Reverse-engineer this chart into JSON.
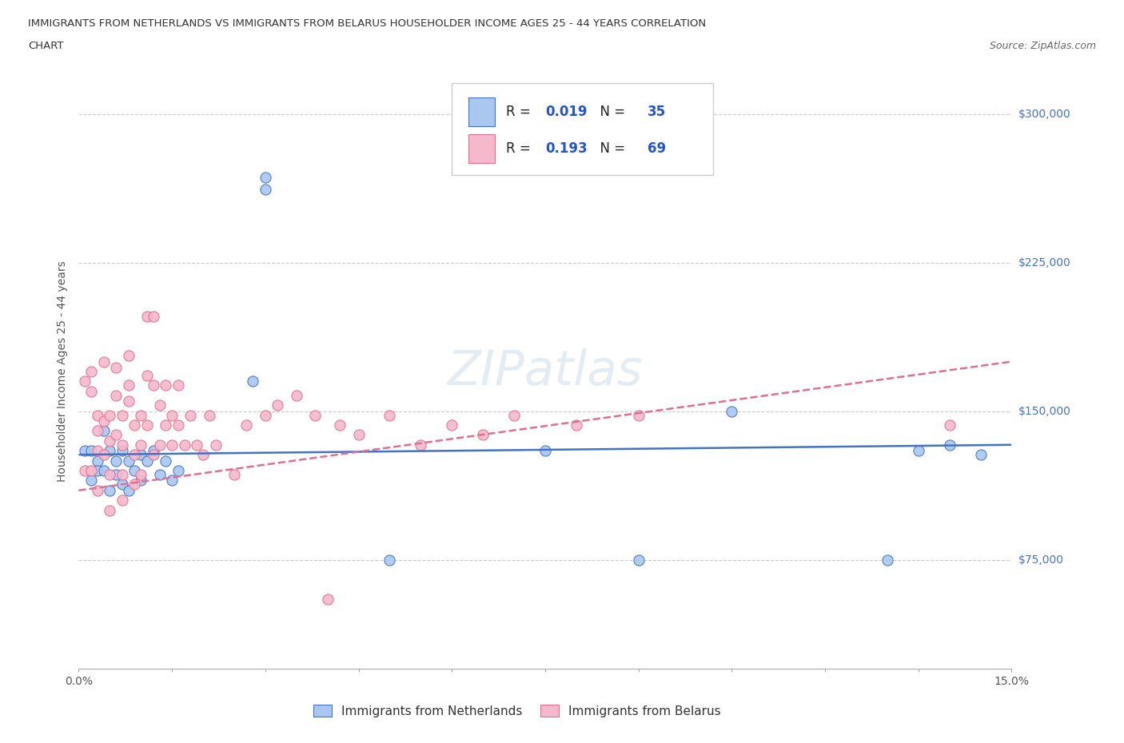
{
  "title_line1": "IMMIGRANTS FROM NETHERLANDS VS IMMIGRANTS FROM BELARUS HOUSEHOLDER INCOME AGES 25 - 44 YEARS CORRELATION",
  "title_line2": "CHART",
  "source_text": "Source: ZipAtlas.com",
  "ylabel": "Householder Income Ages 25 - 44 years",
  "xlim": [
    0.0,
    0.15
  ],
  "ylim": [
    20000,
    320000
  ],
  "xticks": [
    0.0,
    0.015,
    0.03,
    0.045,
    0.06,
    0.075,
    0.09,
    0.105,
    0.12,
    0.135,
    0.15
  ],
  "xticklabels": [
    "0.0%",
    "",
    "",
    "",
    "",
    "",
    "",
    "",
    "",
    "",
    "15.0%"
  ],
  "ytick_positions": [
    75000,
    150000,
    225000,
    300000
  ],
  "ytick_labels": [
    "$75,000",
    "$150,000",
    "$225,000",
    "$300,000"
  ],
  "color_netherlands": "#a8c8f0",
  "color_belarus": "#f5b8cc",
  "line_color_netherlands": "#4472c4",
  "line_color_belarus": "#e07090",
  "R_netherlands": 0.019,
  "N_netherlands": 35,
  "R_belarus": 0.193,
  "N_belarus": 69,
  "watermark": "ZIPatlas",
  "background_color": "#ffffff",
  "grid_color": "#cccccc",
  "nl_line_y0": 128000,
  "nl_line_y1": 133000,
  "by_line_y0": 110000,
  "by_line_y1": 175000,
  "netherlands_x": [
    0.001,
    0.002,
    0.002,
    0.003,
    0.003,
    0.004,
    0.004,
    0.005,
    0.005,
    0.006,
    0.006,
    0.007,
    0.007,
    0.008,
    0.008,
    0.009,
    0.01,
    0.01,
    0.011,
    0.012,
    0.013,
    0.014,
    0.015,
    0.016,
    0.028,
    0.03,
    0.03,
    0.05,
    0.075,
    0.09,
    0.105,
    0.13,
    0.135,
    0.14,
    0.145
  ],
  "netherlands_y": [
    130000,
    130000,
    115000,
    125000,
    120000,
    140000,
    120000,
    130000,
    110000,
    125000,
    118000,
    130000,
    113000,
    125000,
    110000,
    120000,
    128000,
    115000,
    125000,
    130000,
    118000,
    125000,
    115000,
    120000,
    165000,
    262000,
    268000,
    75000,
    130000,
    75000,
    150000,
    75000,
    130000,
    133000,
    128000
  ],
  "belarus_x": [
    0.001,
    0.001,
    0.002,
    0.002,
    0.002,
    0.003,
    0.003,
    0.003,
    0.003,
    0.004,
    0.004,
    0.004,
    0.005,
    0.005,
    0.005,
    0.005,
    0.006,
    0.006,
    0.006,
    0.007,
    0.007,
    0.007,
    0.007,
    0.008,
    0.008,
    0.008,
    0.009,
    0.009,
    0.009,
    0.01,
    0.01,
    0.01,
    0.011,
    0.011,
    0.011,
    0.012,
    0.012,
    0.012,
    0.013,
    0.013,
    0.014,
    0.014,
    0.015,
    0.015,
    0.016,
    0.016,
    0.017,
    0.018,
    0.019,
    0.02,
    0.021,
    0.022,
    0.025,
    0.027,
    0.03,
    0.032,
    0.035,
    0.038,
    0.04,
    0.042,
    0.045,
    0.05,
    0.055,
    0.06,
    0.065,
    0.07,
    0.08,
    0.09,
    0.14
  ],
  "belarus_y": [
    120000,
    165000,
    160000,
    170000,
    120000,
    140000,
    148000,
    130000,
    110000,
    175000,
    145000,
    128000,
    148000,
    135000,
    118000,
    100000,
    158000,
    172000,
    138000,
    148000,
    133000,
    118000,
    105000,
    155000,
    163000,
    178000,
    143000,
    128000,
    113000,
    148000,
    133000,
    118000,
    198000,
    168000,
    143000,
    198000,
    163000,
    128000,
    153000,
    133000,
    163000,
    143000,
    148000,
    133000,
    163000,
    143000,
    133000,
    148000,
    133000,
    128000,
    148000,
    133000,
    118000,
    143000,
    148000,
    153000,
    158000,
    148000,
    55000,
    143000,
    138000,
    148000,
    133000,
    143000,
    138000,
    148000,
    143000,
    148000,
    143000
  ]
}
